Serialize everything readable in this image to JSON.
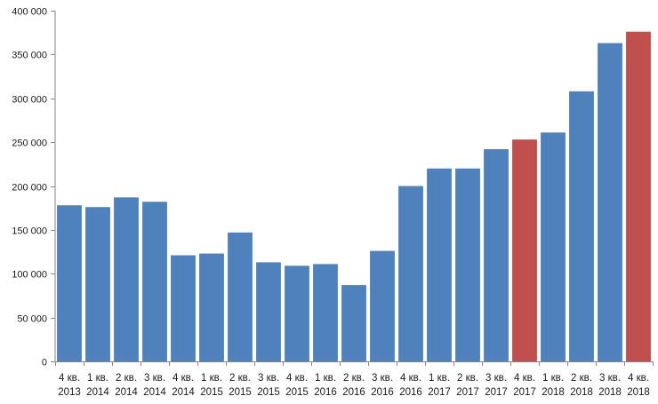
{
  "chart_data": {
    "type": "bar",
    "title": "",
    "xlabel": "",
    "ylabel": "",
    "ylim": [
      0,
      400000
    ],
    "yticks": [
      0,
      50000,
      100000,
      150000,
      200000,
      250000,
      300000,
      350000,
      400000
    ],
    "ytick_labels": [
      "0",
      "50 000",
      "100 000",
      "150 000",
      "200 000",
      "250 000",
      "300 000",
      "350 000",
      "400 000"
    ],
    "grid": false,
    "legend": "none",
    "categories": [
      [
        "4 кв.",
        "2013"
      ],
      [
        "1 кв.",
        "2014"
      ],
      [
        "2 кв.",
        "2014"
      ],
      [
        "3 кв.",
        "2014"
      ],
      [
        "4 кв.",
        "2014"
      ],
      [
        "1 кв.",
        "2015"
      ],
      [
        "2 кв.",
        "2015"
      ],
      [
        "3 кв.",
        "2015"
      ],
      [
        "4 кв.",
        "2015"
      ],
      [
        "1 кв.",
        "2016"
      ],
      [
        "2 кв.",
        "2016"
      ],
      [
        "3 кв.",
        "2016"
      ],
      [
        "4 кв.",
        "2016"
      ],
      [
        "1 кв.",
        "2017"
      ],
      [
        "2 кв.",
        "2017"
      ],
      [
        "3 кв.",
        "2017"
      ],
      [
        "4 кв.",
        "2017"
      ],
      [
        "1 кв.",
        "2018"
      ],
      [
        "2 кв.",
        "2018"
      ],
      [
        "3 кв.",
        "2018"
      ],
      [
        "4 кв.",
        "2018"
      ]
    ],
    "values": [
      178000,
      176000,
      187000,
      182000,
      121000,
      123000,
      147000,
      113000,
      109000,
      111000,
      87000,
      126000,
      200000,
      220000,
      220000,
      242000,
      253000,
      261000,
      308000,
      363000,
      376000
    ],
    "bar_colors": [
      "#4f81bd",
      "#4f81bd",
      "#4f81bd",
      "#4f81bd",
      "#4f81bd",
      "#4f81bd",
      "#4f81bd",
      "#4f81bd",
      "#4f81bd",
      "#4f81bd",
      "#4f81bd",
      "#4f81bd",
      "#4f81bd",
      "#4f81bd",
      "#4f81bd",
      "#4f81bd",
      "#c0504d",
      "#4f81bd",
      "#4f81bd",
      "#4f81bd",
      "#c0504d"
    ],
    "axis_color": "#868686"
  }
}
